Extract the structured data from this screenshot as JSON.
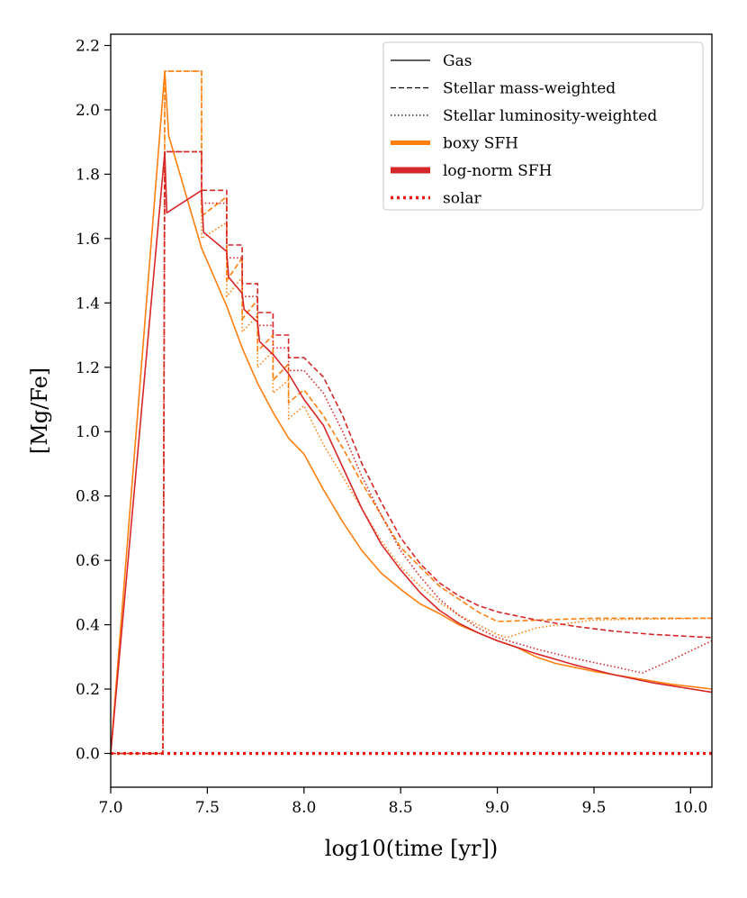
{
  "chart_data": {
    "type": "line",
    "title": "",
    "xlabel": "log10(time [yr])",
    "ylabel": "[Mg/Fe]",
    "xlim": [
      7.0,
      10.11
    ],
    "ylim": [
      -0.105,
      2.235
    ],
    "grid": false,
    "legend_position": "top-right",
    "x_ticks": [
      7.0,
      7.5,
      8.0,
      8.5,
      9.0,
      9.5,
      10.0
    ],
    "x_tick_labels": [
      "7.0",
      "7.5",
      "8.0",
      "8.5",
      "9.0",
      "9.5",
      "10.0"
    ],
    "y_ticks": [
      0.0,
      0.2,
      0.4,
      0.6,
      0.8,
      1.0,
      1.2,
      1.4,
      1.6,
      1.8,
      2.0,
      2.2
    ],
    "y_tick_labels": [
      "0.0",
      "0.2",
      "0.4",
      "0.6",
      "0.8",
      "1.0",
      "1.2",
      "1.4",
      "1.6",
      "1.8",
      "2.0",
      "2.2"
    ],
    "colors": {
      "boxy": "#ff7f0e",
      "lognorm": "#d62728",
      "solar": "#e8160c"
    },
    "legend": [
      {
        "label": "Gas",
        "style": "solid",
        "color": "#000000",
        "width": 1.2
      },
      {
        "label": "Stellar mass-weighted",
        "style": "dashed",
        "color": "#000000",
        "width": 1.2
      },
      {
        "label": "Stellar luminosity-weighted",
        "style": "dotted",
        "color": "#000000",
        "width": 1.2
      },
      {
        "label": "boxy SFH",
        "style": "solid",
        "color": "#ff7f0e",
        "width": 5
      },
      {
        "label": "log-norm SFH",
        "style": "solid",
        "color": "#d62728",
        "width": 7
      },
      {
        "label": "solar",
        "style": "dotted",
        "color": "#e8160c",
        "width": 3.5
      }
    ],
    "series": [
      {
        "name": "boxy SFH - Gas",
        "color": "#ff7f0e",
        "style": "solid",
        "points": [
          [
            7.0,
            0.0
          ],
          [
            7.28,
            2.12
          ],
          [
            7.3,
            1.92
          ],
          [
            7.47,
            1.57
          ],
          [
            7.6,
            1.39
          ],
          [
            7.68,
            1.26
          ],
          [
            7.76,
            1.15
          ],
          [
            7.84,
            1.06
          ],
          [
            7.92,
            0.98
          ],
          [
            8.0,
            0.93
          ],
          [
            8.1,
            0.82
          ],
          [
            8.2,
            0.72
          ],
          [
            8.3,
            0.63
          ],
          [
            8.4,
            0.56
          ],
          [
            8.5,
            0.51
          ],
          [
            8.6,
            0.465
          ],
          [
            8.7,
            0.435
          ],
          [
            8.8,
            0.4
          ],
          [
            8.9,
            0.375
          ],
          [
            9.0,
            0.35
          ],
          [
            9.1,
            0.33
          ],
          [
            9.2,
            0.3
          ],
          [
            9.3,
            0.28
          ],
          [
            9.5,
            0.255
          ],
          [
            9.7,
            0.235
          ],
          [
            9.9,
            0.215
          ],
          [
            10.11,
            0.2
          ]
        ]
      },
      {
        "name": "boxy SFH - Stellar mass-weighted",
        "color": "#ff7f0e",
        "style": "dashed",
        "points": [
          [
            7.0,
            0.0
          ],
          [
            7.27,
            0.0
          ],
          [
            7.28,
            2.12
          ],
          [
            7.47,
            2.12
          ],
          [
            7.47,
            1.67
          ],
          [
            7.6,
            1.73
          ],
          [
            7.6,
            1.47
          ],
          [
            7.68,
            1.54
          ],
          [
            7.68,
            1.35
          ],
          [
            7.76,
            1.41
          ],
          [
            7.76,
            1.25
          ],
          [
            7.84,
            1.3
          ],
          [
            7.84,
            1.16
          ],
          [
            7.92,
            1.21
          ],
          [
            7.92,
            1.09
          ],
          [
            8.0,
            1.13
          ],
          [
            8.1,
            1.05
          ],
          [
            8.2,
            0.95
          ],
          [
            8.3,
            0.84
          ],
          [
            8.4,
            0.74
          ],
          [
            8.5,
            0.64
          ],
          [
            8.6,
            0.58
          ],
          [
            8.7,
            0.52
          ],
          [
            8.8,
            0.48
          ],
          [
            8.9,
            0.44
          ],
          [
            9.0,
            0.41
          ],
          [
            9.01,
            0.41
          ],
          [
            9.25,
            0.415
          ],
          [
            9.5,
            0.42
          ],
          [
            10.11,
            0.42
          ]
        ]
      },
      {
        "name": "boxy SFH - Stellar luminosity-weighted",
        "color": "#ff7f0e",
        "style": "dotted",
        "points": [
          [
            7.0,
            0.0
          ],
          [
            7.27,
            0.0
          ],
          [
            7.28,
            2.12
          ],
          [
            7.47,
            2.12
          ],
          [
            7.47,
            1.6
          ],
          [
            7.6,
            1.65
          ],
          [
            7.6,
            1.42
          ],
          [
            7.68,
            1.48
          ],
          [
            7.68,
            1.31
          ],
          [
            7.76,
            1.36
          ],
          [
            7.76,
            1.2
          ],
          [
            7.84,
            1.25
          ],
          [
            7.84,
            1.12
          ],
          [
            7.92,
            1.16
          ],
          [
            7.92,
            1.04
          ],
          [
            8.0,
            1.08
          ],
          [
            8.1,
            0.96
          ],
          [
            8.2,
            0.86
          ],
          [
            8.3,
            0.76
          ],
          [
            8.4,
            0.66
          ],
          [
            8.5,
            0.58
          ],
          [
            8.6,
            0.52
          ],
          [
            8.7,
            0.47
          ],
          [
            8.8,
            0.43
          ],
          [
            8.9,
            0.4
          ],
          [
            9.0,
            0.37
          ],
          [
            9.05,
            0.36
          ],
          [
            9.2,
            0.39
          ],
          [
            9.5,
            0.415
          ],
          [
            10.11,
            0.42
          ]
        ]
      },
      {
        "name": "log-norm SFH - Gas",
        "color": "#d62728",
        "style": "solid",
        "points": [
          [
            7.0,
            0.0
          ],
          [
            7.28,
            1.87
          ],
          [
            7.29,
            1.68
          ],
          [
            7.47,
            1.75
          ],
          [
            7.48,
            1.62
          ],
          [
            7.6,
            1.56
          ],
          [
            7.61,
            1.48
          ],
          [
            7.68,
            1.43
          ],
          [
            7.69,
            1.38
          ],
          [
            7.76,
            1.34
          ],
          [
            7.77,
            1.28
          ],
          [
            7.84,
            1.24
          ],
          [
            7.92,
            1.18
          ],
          [
            8.0,
            1.1
          ],
          [
            8.1,
            1.02
          ],
          [
            8.2,
            0.89
          ],
          [
            8.3,
            0.76
          ],
          [
            8.4,
            0.65
          ],
          [
            8.5,
            0.57
          ],
          [
            8.6,
            0.5
          ],
          [
            8.7,
            0.445
          ],
          [
            8.8,
            0.405
          ],
          [
            8.9,
            0.375
          ],
          [
            9.0,
            0.35
          ],
          [
            9.2,
            0.31
          ],
          [
            9.4,
            0.275
          ],
          [
            9.6,
            0.245
          ],
          [
            9.8,
            0.22
          ],
          [
            10.11,
            0.19
          ]
        ]
      },
      {
        "name": "log-norm SFH - Stellar mass-weighted",
        "color": "#d62728",
        "style": "dashed",
        "points": [
          [
            7.0,
            0.0
          ],
          [
            7.27,
            0.0
          ],
          [
            7.28,
            1.87
          ],
          [
            7.47,
            1.87
          ],
          [
            7.47,
            1.75
          ],
          [
            7.6,
            1.75
          ],
          [
            7.6,
            1.58
          ],
          [
            7.68,
            1.58
          ],
          [
            7.68,
            1.46
          ],
          [
            7.76,
            1.46
          ],
          [
            7.76,
            1.37
          ],
          [
            7.84,
            1.37
          ],
          [
            7.84,
            1.3
          ],
          [
            7.92,
            1.3
          ],
          [
            7.92,
            1.23
          ],
          [
            8.0,
            1.23
          ],
          [
            8.1,
            1.17
          ],
          [
            8.2,
            1.05
          ],
          [
            8.3,
            0.9
          ],
          [
            8.4,
            0.78
          ],
          [
            8.5,
            0.67
          ],
          [
            8.6,
            0.59
          ],
          [
            8.7,
            0.53
          ],
          [
            8.8,
            0.49
          ],
          [
            8.9,
            0.46
          ],
          [
            9.0,
            0.44
          ],
          [
            9.2,
            0.415
          ],
          [
            9.4,
            0.395
          ],
          [
            9.6,
            0.38
          ],
          [
            9.8,
            0.37
          ],
          [
            10.11,
            0.36
          ]
        ]
      },
      {
        "name": "log-norm SFH - Stellar luminosity-weighted",
        "color": "#d62728",
        "style": "dotted",
        "points": [
          [
            7.0,
            0.0
          ],
          [
            7.27,
            0.0
          ],
          [
            7.28,
            1.87
          ],
          [
            7.47,
            1.87
          ],
          [
            7.47,
            1.71
          ],
          [
            7.6,
            1.71
          ],
          [
            7.6,
            1.54
          ],
          [
            7.68,
            1.54
          ],
          [
            7.68,
            1.42
          ],
          [
            7.76,
            1.42
          ],
          [
            7.76,
            1.33
          ],
          [
            7.84,
            1.33
          ],
          [
            7.84,
            1.26
          ],
          [
            7.92,
            1.26
          ],
          [
            7.92,
            1.19
          ],
          [
            8.0,
            1.19
          ],
          [
            8.1,
            1.12
          ],
          [
            8.2,
            1.0
          ],
          [
            8.3,
            0.86
          ],
          [
            8.4,
            0.74
          ],
          [
            8.5,
            0.63
          ],
          [
            8.6,
            0.55
          ],
          [
            8.7,
            0.48
          ],
          [
            8.8,
            0.43
          ],
          [
            8.9,
            0.39
          ],
          [
            9.0,
            0.36
          ],
          [
            9.2,
            0.325
          ],
          [
            9.4,
            0.295
          ],
          [
            9.6,
            0.27
          ],
          [
            9.75,
            0.25
          ],
          [
            9.9,
            0.29
          ],
          [
            10.11,
            0.35
          ]
        ]
      },
      {
        "name": "solar",
        "color": "#e8160c",
        "style": "dotted_bold",
        "points": [
          [
            7.0,
            0.0
          ],
          [
            10.11,
            0.0
          ]
        ]
      }
    ]
  }
}
